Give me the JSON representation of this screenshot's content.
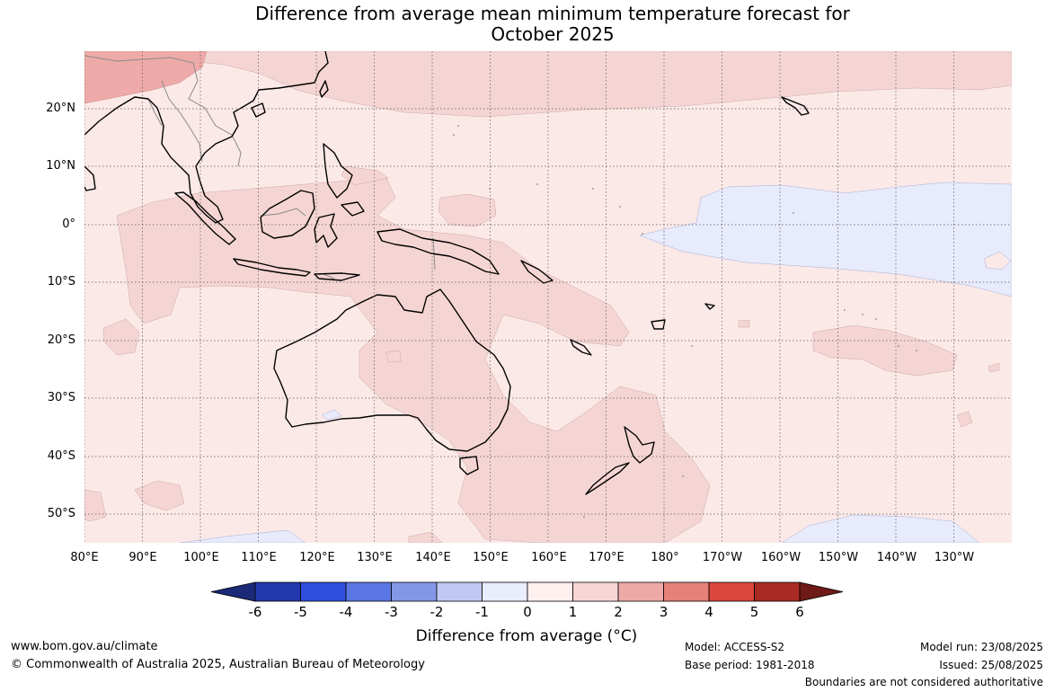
{
  "title": {
    "line1": "Difference from average mean minimum temperature forecast for",
    "line2": "October 2025"
  },
  "map": {
    "lat_labels": [
      "20°N",
      "10°N",
      "0°",
      "10°S",
      "20°S",
      "30°S",
      "40°S",
      "50°S"
    ],
    "lon_labels": [
      "80°E",
      "90°E",
      "100°E",
      "110°E",
      "120°E",
      "130°E",
      "140°E",
      "150°E",
      "160°E",
      "170°E",
      "180°",
      "170°W",
      "160°W",
      "150°W",
      "140°W",
      "130°W"
    ],
    "colors": {
      "anomaly_0_1": "#fbe9e8",
      "anomaly_1_2": "#f5d5d4",
      "anomaly_2_3": "#eeaaa8",
      "anomaly_neg1_0": "#e8ebfb",
      "coastline": "#000000",
      "borders": "#8a8a8a",
      "grid": "#555555"
    }
  },
  "colorbar": {
    "title": "Difference from average (",
    "title_unit": "°C)",
    "ticks": [
      "-6",
      "-5",
      "-4",
      "-3",
      "-2",
      "-1",
      "0",
      "1",
      "2",
      "3",
      "4",
      "5",
      "6"
    ],
    "colors": [
      "#1b2a78",
      "#2438ad",
      "#2f50dc",
      "#5a76e2",
      "#8497e6",
      "#c0c8f2",
      "#eaedfc",
      "#fdf0ef",
      "#f6d6d5",
      "#eda9a6",
      "#e58179",
      "#da473e",
      "#a82a23",
      "#6e1a16"
    ]
  },
  "footer": {
    "website": "www.bom.gov.au/climate",
    "copyright": "© Commonwealth of Australia 2025, Australian Bureau of Meteorology",
    "model": "Model: ACCESS-S2",
    "base_period": "Base period: 1981-2018",
    "model_run": "Model run: 23/08/2025",
    "issued": "Issued: 25/08/2025",
    "disclaimer": "Boundaries are not considered authoritative"
  }
}
